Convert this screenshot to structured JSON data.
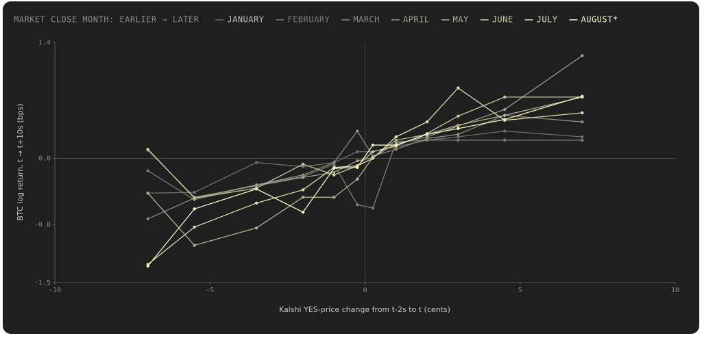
{
  "chart_data": {
    "type": "line",
    "legend_title": "MARKET CLOSE MONTH: EARLIER → LATER",
    "x_label": "Kalshi YES-price change from t-2s to t (cents)",
    "y_label": "BTC log return, t → t+10s (bps)",
    "x": [
      -7,
      -5.5,
      -3.5,
      -2,
      -1,
      -0.25,
      0.25,
      1,
      2,
      3,
      4.5,
      7
    ],
    "xlim": [
      -10,
      10
    ],
    "xticks": [
      -10,
      -5,
      0,
      5,
      10
    ],
    "ylim": [
      -1.5,
      1.4
    ],
    "yticks": [
      -1.5,
      -0.8,
      {
        "value": 0,
        "label": "0.0"
      },
      1.4
    ],
    "legend": "top",
    "series": [
      {
        "name": "JANUARY",
        "color": "#6f6f6c",
        "values": [
          -0.42,
          -0.41,
          -0.05,
          -0.1,
          -0.05,
          0.08,
          0.08,
          0.14,
          0.22,
          0.26,
          0.33,
          0.26
        ]
      },
      {
        "name": "FEBRUARY",
        "color": "#7d7d78",
        "values": [
          -0.15,
          -0.5,
          -0.32,
          -0.22,
          -0.07,
          -0.56,
          -0.6,
          0.2,
          0.22,
          0.22,
          0.22,
          0.22
        ]
      },
      {
        "name": "MARCH",
        "color": "#8b8b82",
        "values": [
          -0.73,
          -0.48,
          -0.32,
          -0.2,
          -0.05,
          0.33,
          0.03,
          0.11,
          0.24,
          0.29,
          0.52,
          0.44
        ]
      },
      {
        "name": "APRIL",
        "color": "#9c9d8a",
        "values": [
          0.1,
          -0.47,
          -0.33,
          -0.23,
          -0.17,
          -0.03,
          0.01,
          0.18,
          0.26,
          0.39,
          0.59,
          1.24
        ]
      },
      {
        "name": "MAY",
        "color": "#b0b192",
        "values": [
          -0.42,
          -1.05,
          -0.84,
          -0.47,
          -0.47,
          -0.25,
          0.01,
          0.22,
          0.29,
          0.4,
          0.52,
          0.74
        ]
      },
      {
        "name": "JUNE",
        "color": "#c7c89c",
        "values": [
          0.11,
          -0.48,
          -0.36,
          -0.07,
          -0.2,
          -0.09,
          0.08,
          0.15,
          0.3,
          0.51,
          0.74,
          0.74
        ]
      },
      {
        "name": "JULY",
        "color": "#dddeb0",
        "values": [
          -1.28,
          -0.83,
          -0.54,
          -0.38,
          -0.11,
          -0.09,
          0,
          0.26,
          0.44,
          0.85,
          0.46,
          0.55
        ]
      },
      {
        "name": "AUGUST*",
        "color": "#f3f3c6",
        "values": [
          -1.3,
          -0.61,
          -0.37,
          -0.65,
          -0.12,
          -0.11,
          0.16,
          0.16,
          0.29,
          0.36,
          0.47,
          0.75
        ]
      }
    ]
  }
}
